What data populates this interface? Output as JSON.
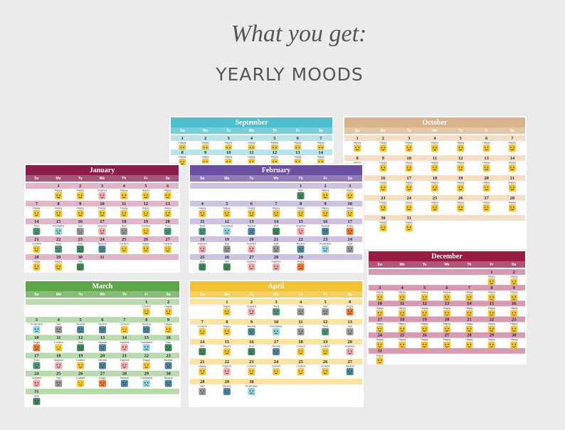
{
  "header": {
    "script_title": "What you get:",
    "title": "YEARLY MOODS"
  },
  "weekdays": [
    "Su",
    "Mo",
    "Tu",
    "We",
    "Th",
    "Fr",
    "Sa"
  ],
  "mood_colors": {
    "Happy": "#f4c726",
    "Content": "#f4c726",
    "Inspired": "#f4a9a8",
    "Sad": "#9a9a9a",
    "Tired": "#4a9a7a",
    "Frustrated": "#8fd3e0",
    "Sick": "#3f8a5c",
    "Neutral": "#4a87a3",
    "Angry": "#ef7a30"
  },
  "months": [
    {
      "name": "September",
      "color": "#4bbfcc",
      "band": "#b9e5ea",
      "days": [
        [
          1,
          2,
          3,
          4,
          5,
          6,
          7
        ],
        [
          8,
          9,
          10,
          11,
          12,
          13,
          14
        ]
      ],
      "moods": [
        [
          "Happy",
          "Happy",
          "Happy",
          "Happy",
          "Happy",
          "Happy",
          "Happy"
        ],
        [
          "Happy",
          "Happy",
          "Happy",
          "Happy",
          "Happy",
          "Happy",
          "Happy"
        ]
      ]
    },
    {
      "name": "October",
      "color": "#d9b48a",
      "band": "#f5dfc4",
      "days": [
        [
          1,
          2,
          3,
          4,
          5,
          6,
          7
        ],
        [
          8,
          9,
          10,
          11,
          12,
          13,
          14
        ],
        [
          15,
          16,
          17,
          18,
          19,
          20,
          21
        ],
        [
          22,
          23,
          24,
          25,
          26,
          27,
          28
        ],
        [
          29,
          30,
          31,
          null,
          null,
          null,
          null
        ]
      ],
      "moods": [
        [
          "Happy",
          "Happy",
          "Happy",
          "Happy",
          "Happy",
          "Happy",
          "Happy"
        ],
        [
          "Happy",
          "Happy",
          "Happy",
          "Happy",
          "Happy",
          "Happy",
          "Happy"
        ],
        [
          "Happy",
          "Happy",
          "Happy",
          "Happy",
          "Happy",
          "Happy",
          "Happy"
        ],
        [
          "Happy",
          "Happy",
          "Happy",
          "Happy",
          "Happy",
          "Happy",
          "Happy"
        ],
        [
          "Happy",
          "Happy",
          "Happy",
          null,
          null,
          null,
          null
        ]
      ]
    },
    {
      "name": "December",
      "color": "#9b1b45",
      "band": "#d99bb2",
      "days": [
        [
          null,
          null,
          null,
          null,
          null,
          1,
          2
        ],
        [
          3,
          4,
          5,
          6,
          7,
          8,
          9
        ],
        [
          10,
          11,
          12,
          13,
          14,
          15,
          16
        ],
        [
          17,
          18,
          19,
          20,
          21,
          22,
          23
        ],
        [
          24,
          25,
          26,
          27,
          28,
          29,
          30
        ],
        [
          31,
          null,
          null,
          null,
          null,
          null,
          null
        ]
      ],
      "moods": [
        [
          null,
          null,
          null,
          null,
          null,
          "Happy",
          "Happy"
        ],
        [
          "Happy",
          "Happy",
          "Happy",
          "Happy",
          "Happy",
          "Happy",
          "Happy"
        ],
        [
          "Happy",
          "Happy",
          "Happy",
          "Happy",
          "Happy",
          "Happy",
          "Happy"
        ],
        [
          "Happy",
          "Happy",
          "Happy",
          "Happy",
          "Happy",
          "Happy",
          "Happy"
        ],
        [
          "Happy",
          "Happy",
          "Happy",
          "Happy",
          "Happy",
          "Happy",
          "Happy"
        ],
        [
          "Happy",
          null,
          null,
          null,
          null,
          null,
          null
        ]
      ]
    },
    {
      "name": "January",
      "color": "#8a1c4a",
      "band": "#e2b6c8",
      "days": [
        [
          null,
          1,
          2,
          3,
          4,
          5,
          6
        ],
        [
          7,
          8,
          9,
          10,
          11,
          12,
          13
        ],
        [
          14,
          15,
          16,
          17,
          18,
          19,
          20
        ],
        [
          21,
          22,
          23,
          24,
          25,
          26,
          27
        ],
        [
          28,
          29,
          30,
          31,
          null,
          null,
          null
        ]
      ],
      "moods": [
        [
          null,
          "Happy",
          "Happy",
          "Inspired",
          "Happy",
          "Happy",
          "Happy"
        ],
        [
          "Happy",
          "Happy",
          "Happy",
          "Happy",
          "Happy",
          "Happy",
          "Happy"
        ],
        [
          "Tired",
          "Frustrated",
          "Sad",
          "Inspired",
          "Sad",
          "Content",
          "Tired"
        ],
        [
          "Content",
          "Tired",
          "Sick",
          "Neutral",
          "Content",
          "Happy",
          "Content"
        ],
        [
          "Happy",
          "Happy",
          "Sick",
          null,
          null,
          null,
          null
        ]
      ]
    },
    {
      "name": "February",
      "color": "#6a4fa3",
      "band": "#cfc3e3",
      "days": [
        [
          null,
          null,
          null,
          null,
          1,
          2,
          3
        ],
        [
          4,
          5,
          6,
          7,
          8,
          9,
          10
        ],
        [
          11,
          12,
          13,
          14,
          15,
          16,
          17
        ],
        [
          18,
          19,
          20,
          21,
          22,
          23,
          24
        ],
        [
          25,
          26,
          27,
          28,
          29,
          null,
          null
        ]
      ],
      "moods": [
        [
          null,
          null,
          null,
          null,
          "Sick",
          "Happy",
          "Happy"
        ],
        [
          "Happy",
          "Happy",
          "Happy",
          "Happy",
          "Happy",
          "Happy",
          "Happy"
        ],
        [
          "Tired",
          "Frustrated",
          "Neutral",
          "Sick",
          "Inspired",
          "Neutral",
          "Angry"
        ],
        [
          "Inspired",
          "Sad",
          "Inspired",
          "Sad",
          "Neutral",
          "Frustrated",
          "Sad"
        ],
        [
          "Sick",
          "Sick",
          "Inspired",
          "Inspired",
          "Angry",
          null,
          null
        ]
      ]
    },
    {
      "name": "March",
      "color": "#5ea64a",
      "band": "#b9dcae",
      "days": [
        [
          null,
          null,
          null,
          null,
          null,
          1,
          2
        ],
        [
          3,
          4,
          5,
          6,
          7,
          8,
          9
        ],
        [
          10,
          11,
          12,
          13,
          14,
          15,
          16
        ],
        [
          17,
          18,
          19,
          20,
          21,
          22,
          23
        ],
        [
          24,
          25,
          26,
          27,
          28,
          29,
          30
        ],
        [
          31,
          null,
          null,
          null,
          null,
          null,
          null
        ]
      ],
      "moods": [
        [
          null,
          null,
          null,
          null,
          null,
          "Content",
          "Happy"
        ],
        [
          "Frustrated",
          "Sad",
          "Neutral",
          "Neutral",
          "Content",
          "Neutral",
          "Happy"
        ],
        [
          "Angry",
          "Content",
          "Sick",
          "Neutral",
          "Inspired",
          "Frustrated",
          "Sick"
        ],
        [
          "Tired",
          "Inspired",
          "Content",
          "Neutral",
          "Inspired",
          "Happy",
          "Neutral"
        ],
        [
          "Inspired",
          "Sad",
          "Content",
          "Angry",
          "Neutral",
          "Frustrated",
          "Neutral"
        ],
        [
          "Sick",
          null,
          null,
          null,
          null,
          null,
          null
        ]
      ]
    },
    {
      "name": "April",
      "color": "#f1c232",
      "band": "#fbe3a1",
      "days": [
        [
          null,
          1,
          2,
          3,
          4,
          5,
          6
        ],
        [
          7,
          8,
          9,
          10,
          11,
          12,
          13
        ],
        [
          14,
          15,
          16,
          17,
          18,
          19,
          20
        ],
        [
          21,
          22,
          23,
          24,
          25,
          26,
          27
        ],
        [
          28,
          29,
          30,
          null,
          null,
          null,
          null
        ]
      ],
      "moods": [
        [
          null,
          "Happy",
          "Inspired",
          "Tired",
          "Sad",
          "Sad",
          "Angry"
        ],
        [
          "Content",
          "Happy",
          "Neutral",
          "Frustrated",
          "Sad",
          "Tired",
          "Sad"
        ],
        [
          "Sick",
          "Happy",
          "Sick",
          "Neutral",
          "Content",
          "Content",
          "Inspired"
        ],
        [
          "Happy",
          "Inspired",
          "Content",
          "Content",
          "Content",
          "Content",
          "Neutral"
        ],
        [
          "Sad",
          "Neutral",
          "Frustrated",
          null,
          null,
          null,
          null
        ]
      ]
    }
  ]
}
